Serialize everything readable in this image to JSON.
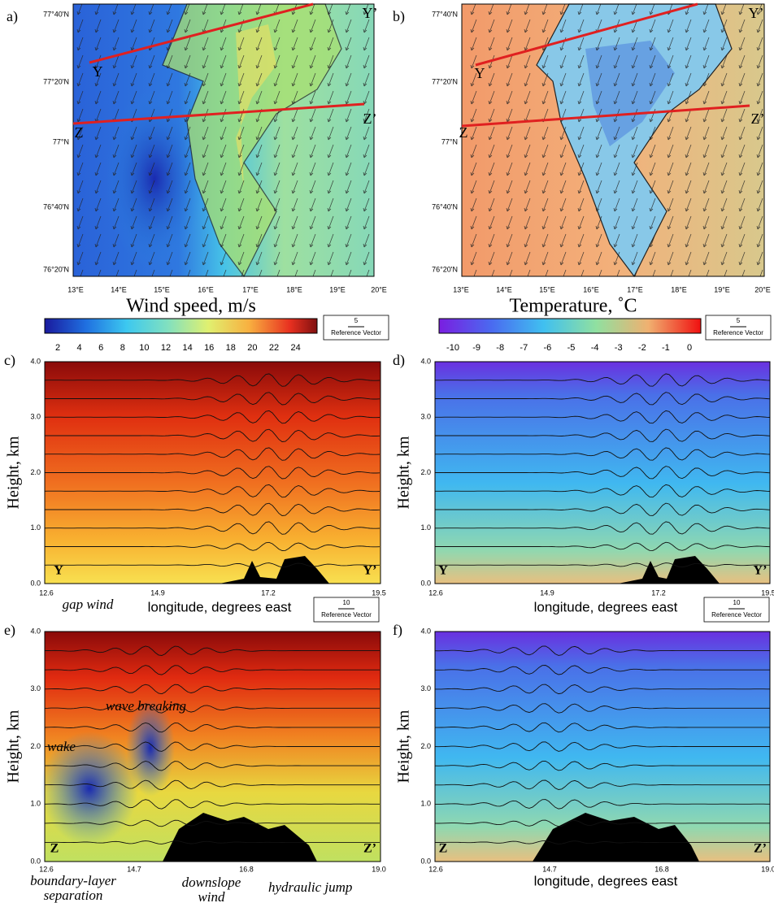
{
  "panels": [
    {
      "letter": "a)",
      "lat_ticks": [
        "77°40'N",
        "77°20'N",
        "77°N",
        "76°40'N",
        "76°20'N"
      ],
      "lon_ticks": [
        "13°E",
        "14°E",
        "15°E",
        "16°E",
        "17°E",
        "18°E",
        "19°E",
        "20°E"
      ],
      "points": [
        "Y",
        "Y’",
        "Z",
        "Z’"
      ]
    },
    {
      "letter": "b)",
      "lat_ticks": [
        "77°40'N",
        "77°20'N",
        "77°N",
        "76°40'N",
        "76°20'N"
      ],
      "lon_ticks": [
        "13°E",
        "14°E",
        "15°E",
        "16°E",
        "17°E",
        "18°E",
        "19°E",
        "20°E"
      ],
      "points": [
        "Y",
        "Y’",
        "Z",
        "Z’"
      ]
    },
    {
      "letter": "c)",
      "y_label": "Height, km",
      "y_ticks": [
        "0.0",
        "1.0",
        "2.0",
        "3.0",
        "4.0"
      ],
      "x_ticks": [
        "12.6",
        "14.9",
        "17.2",
        "19.5"
      ],
      "x_label": "longitude, degrees east",
      "points": [
        "Y",
        "Y’"
      ],
      "annotations": [
        "gap wind"
      ],
      "reference": {
        "value": "10",
        "label": "Reference Vector"
      }
    },
    {
      "letter": "d)",
      "y_label": "Height, km",
      "y_ticks": [
        "0.0",
        "1.0",
        "2.0",
        "3.0",
        "4.0"
      ],
      "x_ticks": [
        "12.6",
        "14.9",
        "17.2",
        "19.5"
      ],
      "x_label": "longitude, degrees east",
      "points": [
        "Y",
        "Y’"
      ],
      "reference": {
        "value": "10",
        "label": "Reference Vector"
      }
    },
    {
      "letter": "e)",
      "y_label": "Height, km",
      "y_ticks": [
        "0.0",
        "1.0",
        "2.0",
        "3.0",
        "4.0"
      ],
      "x_ticks": [
        "12.6",
        "14.7",
        "16.8",
        "19.0"
      ],
      "points": [
        "Z",
        "Z’"
      ],
      "annotations": [
        "wave breaking",
        "wake",
        [
          "boundary-layer",
          "separation"
        ],
        [
          "downslope",
          "wind"
        ],
        "hydraulic jump"
      ]
    },
    {
      "letter": "f)",
      "y_label": "Height, km",
      "y_ticks": [
        "0.0",
        "1.0",
        "2.0",
        "3.0",
        "4.0"
      ],
      "x_ticks": [
        "12.6",
        "14.7",
        "16.8",
        "19.0"
      ],
      "x_label": "longitude, degrees east",
      "points": [
        "Z",
        "Z’"
      ]
    }
  ],
  "colorbars": [
    {
      "title": "Wind speed, m/s",
      "ticks": [
        "2",
        "4",
        "6",
        "8",
        "10",
        "12",
        "14",
        "16",
        "18",
        "20",
        "22",
        "24"
      ],
      "reference": {
        "value": "5",
        "label": "Reference Vector"
      }
    },
    {
      "title": "Temperature, ˚C",
      "ticks": [
        "-10",
        "-9",
        "-8",
        "-7",
        "-6",
        "-5",
        "-4",
        "-3",
        "-2",
        "-1",
        "0"
      ],
      "reference": {
        "value": "5",
        "label": "Reference Vector"
      }
    }
  ]
}
